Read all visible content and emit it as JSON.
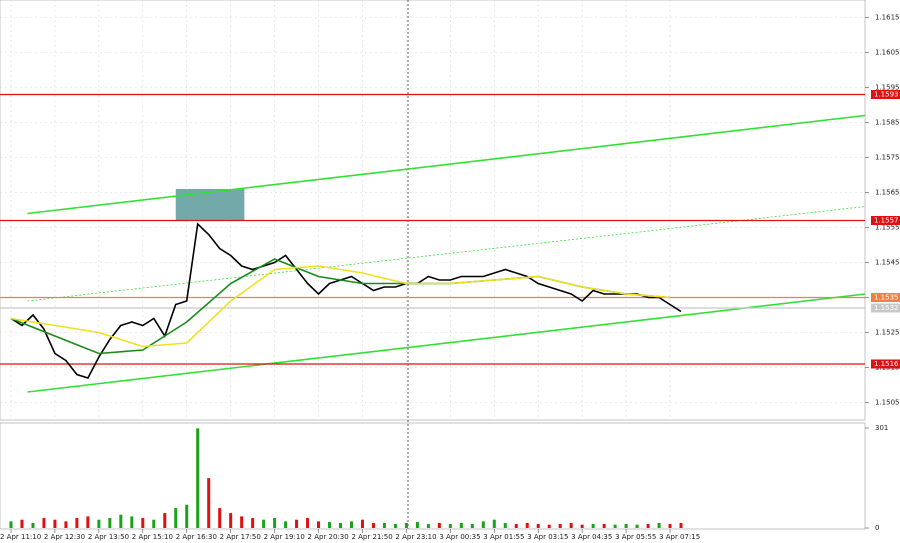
{
  "chart_data": [
    {
      "type": "line",
      "ylim": [
        1.15,
        1.162
      ],
      "yticks": [
        1.1615,
        1.1605,
        1.1595,
        1.1585,
        1.1575,
        1.1565,
        1.1555,
        1.1545,
        1.1535,
        1.1525,
        1.1515,
        1.1505
      ],
      "xlim": [
        -4,
        311
      ],
      "xticks": [
        {
          "value": 0,
          "label": "2 Apr 11:10"
        },
        {
          "value": 16,
          "label": "2 Apr 12:30"
        },
        {
          "value": 32,
          "label": "2 Apr 13:50"
        },
        {
          "value": 48,
          "label": "2 Apr 15:10"
        },
        {
          "value": 64,
          "label": "2 Apr 16:30"
        },
        {
          "value": 80,
          "label": "2 Apr 17:50"
        },
        {
          "value": 96,
          "label": "2 Apr 19:10"
        },
        {
          "value": 112,
          "label": "2 Apr 20:30"
        },
        {
          "value": 128,
          "label": "2 Apr 21:50"
        },
        {
          "value": 144,
          "label": "2 Apr 23:10"
        },
        {
          "value": 160,
          "label": "3 Apr 00:35"
        },
        {
          "value": 176,
          "label": "3 Apr 01:55"
        },
        {
          "value": 192,
          "label": "3 Apr 03:15"
        },
        {
          "value": 208,
          "label": "3 Apr 04:35"
        },
        {
          "value": 224,
          "label": "3 Apr 05:55"
        },
        {
          "value": 240,
          "label": "3 Apr 07:15"
        }
      ],
      "grid": true,
      "series": [
        {
          "color": "#000000",
          "x": [
            0,
            4,
            8,
            12,
            16,
            20,
            24,
            28,
            32,
            36,
            40,
            44,
            48,
            52,
            56,
            60,
            64,
            68,
            72,
            76,
            80,
            84,
            88,
            92,
            96,
            100,
            104,
            108,
            112,
            116,
            120,
            124,
            128,
            132,
            136,
            140,
            144,
            148,
            152,
            156,
            160,
            164,
            168,
            172,
            176,
            180,
            184,
            188,
            192,
            196,
            200,
            204,
            208,
            212,
            216,
            220,
            224,
            228,
            232,
            236,
            240,
            244
          ],
          "values": [
            1.1529,
            1.1527,
            1.153,
            1.1526,
            1.1519,
            1.1517,
            1.1513,
            1.1512,
            1.1518,
            1.1523,
            1.1527,
            1.1528,
            1.1527,
            1.1529,
            1.1524,
            1.1533,
            1.1534,
            1.1556,
            1.1553,
            1.1549,
            1.1547,
            1.1544,
            1.1543,
            1.1544,
            1.1545,
            1.1547,
            1.1543,
            1.1539,
            1.1536,
            1.1539,
            1.154,
            1.1541,
            1.1539,
            1.1537,
            1.1538,
            1.1538,
            1.1539,
            1.1539,
            1.1541,
            1.154,
            1.154,
            1.1541,
            1.1541,
            1.1541,
            1.1542,
            1.1543,
            1.1542,
            1.1541,
            1.1539,
            1.1538,
            1.1537,
            1.1536,
            1.1534,
            1.1537,
            1.1536,
            1.1536,
            1.1536,
            1.1536,
            1.1535,
            1.1535,
            1.1533,
            1.1531
          ]
        },
        {
          "color": "#1a8a1a",
          "x": [
            0,
            16,
            32,
            48,
            64,
            80,
            96,
            112,
            128,
            144,
            160,
            176,
            192,
            208,
            224,
            240
          ],
          "values": [
            1.1529,
            1.1524,
            1.1519,
            1.152,
            1.1528,
            1.1539,
            1.1546,
            1.1541,
            1.1539,
            1.1539,
            1.1539,
            1.154,
            1.1541,
            1.1538,
            1.1536,
            1.1535
          ]
        },
        {
          "color": "#f0e020",
          "x": [
            0,
            16,
            32,
            48,
            64,
            80,
            96,
            112,
            128,
            144,
            160,
            176,
            192,
            208,
            224,
            240
          ],
          "values": [
            1.1529,
            1.1527,
            1.1525,
            1.1521,
            1.1522,
            1.1534,
            1.1543,
            1.1544,
            1.1542,
            1.1539,
            1.1539,
            1.154,
            1.1541,
            1.1538,
            1.1536,
            1.1535
          ]
        }
      ],
      "hlines": [
        {
          "value": 1.1593,
          "color": "#e01010"
        },
        {
          "value": 1.1557,
          "color": "#e01010"
        },
        {
          "value": 1.1535,
          "color": "#f08040"
        },
        {
          "value": 1.1532,
          "color": "#c8c8c8"
        },
        {
          "value": 1.1516,
          "color": "#e01010"
        }
      ],
      "trendlines": [
        {
          "x": [
            6,
            311
          ],
          "values": [
            1.1559,
            1.1587
          ],
          "color": "#33e033"
        },
        {
          "x": [
            6,
            311
          ],
          "values": [
            1.1508,
            1.1536
          ],
          "color": "#33e033"
        },
        {
          "x": [
            6,
            311
          ],
          "values": [
            1.1534,
            1.1561
          ],
          "color": "#33e033",
          "dashed": true
        }
      ],
      "zone": {
        "x": [
          60,
          85
        ],
        "values": [
          1.1557,
          1.1566
        ],
        "color": "#5a9a9a"
      }
    },
    {
      "type": "bar",
      "ylim": [
        0,
        301
      ],
      "yticks": [
        0,
        301
      ],
      "x": [
        0,
        4,
        8,
        12,
        16,
        20,
        24,
        28,
        32,
        36,
        40,
        44,
        48,
        52,
        56,
        60,
        64,
        68,
        72,
        76,
        80,
        84,
        88,
        92,
        96,
        100,
        104,
        108,
        112,
        116,
        120,
        124,
        128,
        132,
        136,
        140,
        144,
        148,
        152,
        156,
        160,
        164,
        168,
        172,
        176,
        180,
        184,
        188,
        192,
        196,
        200,
        204,
        208,
        212,
        216,
        220,
        224,
        228,
        232,
        236,
        240,
        244
      ],
      "values": [
        20,
        25,
        15,
        30,
        25,
        20,
        30,
        35,
        25,
        30,
        40,
        35,
        30,
        25,
        45,
        60,
        70,
        300,
        150,
        60,
        45,
        35,
        30,
        25,
        30,
        20,
        25,
        30,
        20,
        18,
        15,
        20,
        25,
        15,
        15,
        12,
        15,
        18,
        12,
        15,
        12,
        15,
        12,
        20,
        25,
        15,
        12,
        15,
        12,
        10,
        12,
        15,
        10,
        12,
        12,
        10,
        12,
        10,
        12,
        15,
        12,
        15
      ]
    }
  ]
}
